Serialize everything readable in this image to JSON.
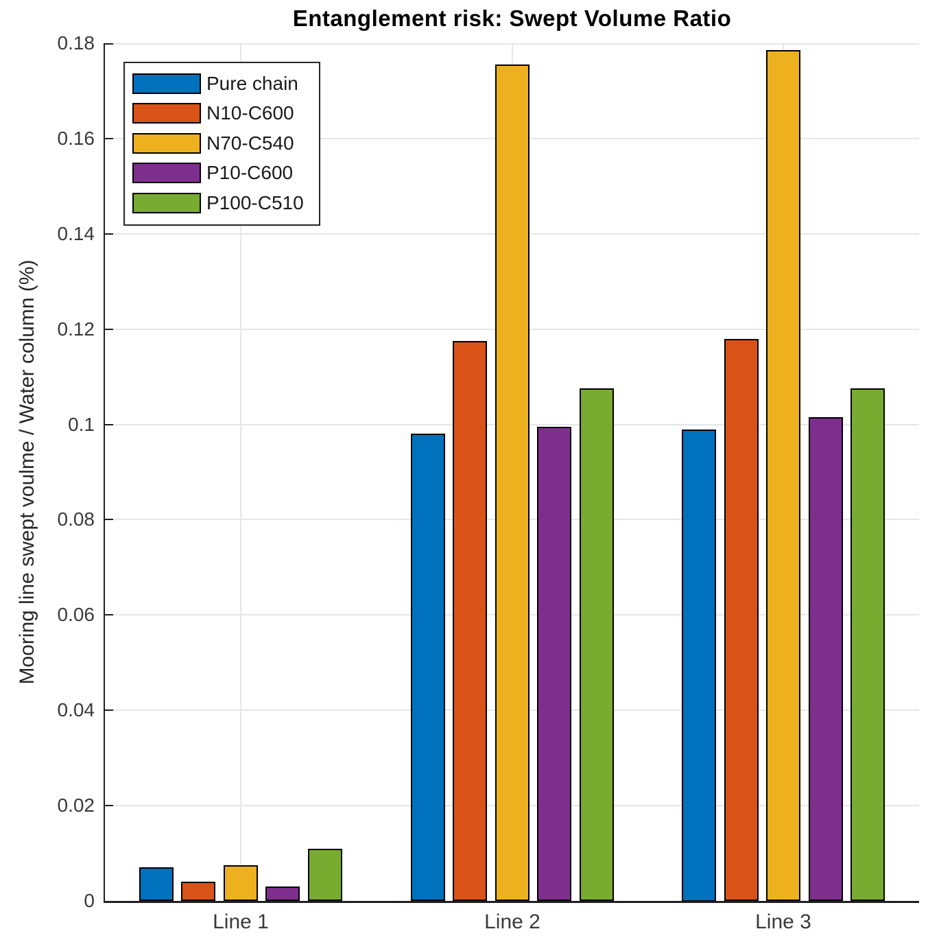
{
  "chart_data": {
    "type": "bar",
    "title": "Entanglement risk: Swept Volume Ratio",
    "xlabel": "",
    "ylabel": "Mooring line swept voulme / Water column (%)",
    "categories": [
      "Line 1",
      "Line 2",
      "Line 3"
    ],
    "series": [
      {
        "name": "Pure chain",
        "color": "#0072BD",
        "values": [
          0.007,
          0.098,
          0.099
        ]
      },
      {
        "name": "N10-C600",
        "color": "#D95319",
        "values": [
          0.004,
          0.1175,
          0.118
        ]
      },
      {
        "name": "N70-C540",
        "color": "#EDB120",
        "values": [
          0.0075,
          0.1755,
          0.1785
        ]
      },
      {
        "name": "P10-C600",
        "color": "#7E2F8E",
        "values": [
          0.003,
          0.0995,
          0.1015
        ]
      },
      {
        "name": "P100-C510",
        "color": "#77AC30",
        "values": [
          0.011,
          0.1075,
          0.1075
        ]
      }
    ],
    "ylim": [
      0,
      0.18
    ],
    "yticks": [
      0,
      0.02,
      0.04,
      0.06,
      0.08,
      0.1,
      0.12,
      0.14,
      0.16,
      0.18
    ],
    "ytick_labels": [
      "0",
      "0.02",
      "0.04",
      "0.06",
      "0.08",
      "0.1",
      "0.12",
      "0.14",
      "0.16",
      "0.18"
    ],
    "grid": true,
    "legend_position": "top-left",
    "colors": {
      "grid": "#e6e6e6",
      "axis": "#1f1f1f",
      "bar_edge": "#000000",
      "text": "#262626"
    }
  }
}
